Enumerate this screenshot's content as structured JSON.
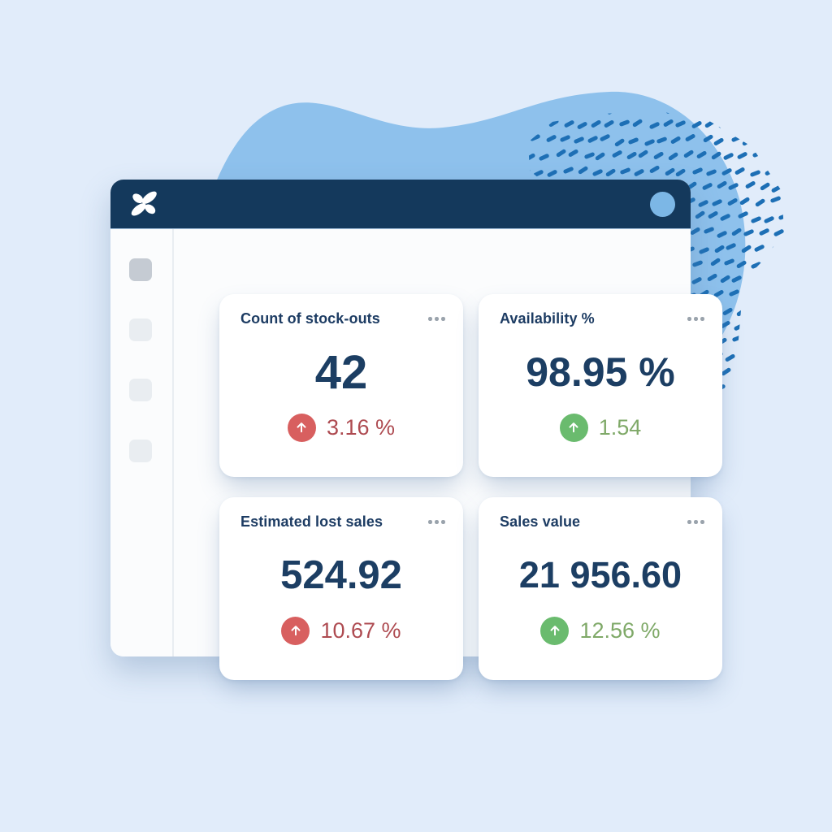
{
  "page": {
    "background_color": "#e1ecfa"
  },
  "decor": {
    "blob_color": "#8ec1ec",
    "dash_color": "#1d6fb5"
  },
  "app_window": {
    "titlebar": {
      "color": "#14395c",
      "logo_icon": "pinwheel-logo",
      "circle_button_color": "#7cb7e6"
    },
    "sidebar": {
      "item_count": 4,
      "active_item_index": 0
    }
  },
  "cards": [
    {
      "title": "Count of stock-outs",
      "menu_icon": "ellipsis",
      "value": "42",
      "trend_icon": "arrow-up",
      "delta": "3.16 %",
      "sentiment": "negative",
      "value_color": "#1c3e63",
      "badge_color": "#d85f5f",
      "delta_color": "#ae4b51"
    },
    {
      "title": "Availability %",
      "menu_icon": "ellipsis",
      "value": "98.95 %",
      "trend_icon": "arrow-up",
      "delta": "1.54",
      "sentiment": "positive",
      "value_color": "#1c3e63",
      "badge_color": "#6abb6e",
      "delta_color": "#7fa968"
    },
    {
      "title": "Estimated lost sales",
      "menu_icon": "ellipsis",
      "value": "524.92",
      "trend_icon": "arrow-up",
      "delta": "10.67 %",
      "sentiment": "negative",
      "value_color": "#1c3e63",
      "badge_color": "#d85f5f",
      "delta_color": "#ae4b51"
    },
    {
      "title": "Sales value",
      "menu_icon": "ellipsis",
      "value": "21 956.60",
      "trend_icon": "arrow-up",
      "delta": "12.56 %",
      "sentiment": "positive",
      "value_color": "#1c3e63",
      "badge_color": "#6abb6e",
      "delta_color": "#7fa968"
    }
  ]
}
